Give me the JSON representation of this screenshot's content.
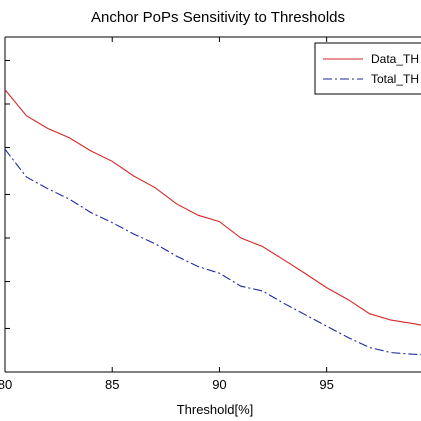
{
  "chart_data": {
    "type": "line",
    "title": "Anchor PoPs Sensitivity to Thresholds",
    "xlabel": "Threshold[%]",
    "ylabel": "",
    "xlim": [
      80,
      99.4
    ],
    "ylim": [
      0,
      100
    ],
    "x_ticks": [
      80,
      85,
      90,
      95
    ],
    "x_tick_labels": [
      "80",
      "85",
      "90",
      "95"
    ],
    "y_ticks": [
      0,
      13,
      27,
      40,
      53,
      67,
      80,
      93
    ],
    "grid": false,
    "legend_position": "top-right",
    "x": [
      80,
      81,
      82,
      83,
      84,
      85,
      86,
      87,
      88,
      89,
      90,
      91,
      92,
      93,
      94,
      95,
      96,
      97,
      98,
      99,
      99.4
    ],
    "series": [
      {
        "name": "Data_TH",
        "color": "#d62728",
        "style": "solid",
        "values": [
          84.3,
          76.5,
          72.7,
          69.9,
          66.0,
          62.9,
          58.5,
          55.0,
          50.2,
          46.8,
          44.9,
          40.0,
          37.5,
          33.5,
          29.4,
          25.2,
          21.6,
          17.4,
          15.5,
          14.5,
          14.0
        ]
      },
      {
        "name": "Total_TH",
        "color": "#1f2a9e",
        "style": "dashdot",
        "values": [
          66.5,
          58.2,
          54.7,
          51.6,
          47.6,
          44.6,
          41.2,
          38.3,
          34.6,
          31.5,
          29.5,
          25.6,
          24.2,
          20.5,
          17.1,
          13.7,
          10.3,
          7.3,
          5.8,
          5.3,
          5.2
        ]
      }
    ]
  }
}
